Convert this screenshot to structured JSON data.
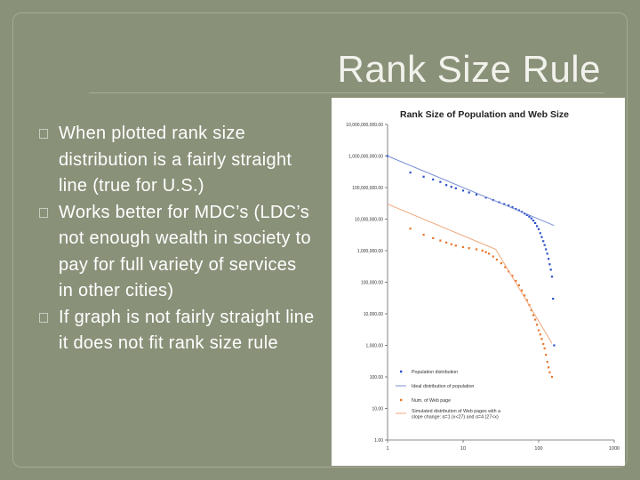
{
  "slide": {
    "title": "Rank Size Rule",
    "bullets": [
      "When plotted rank size distribution is a fairly straight line (true for U.S.)",
      "Works better for MDC’s (LDC’s not enough wealth in society to pay for full variety of services in other cities)",
      "If graph is not fairly straight line it does not fit rank size rule"
    ]
  },
  "chart_data": {
    "type": "scatter",
    "title": "Rank Size of Population and Web Size",
    "xlabel": "",
    "ylabel": "",
    "x_scale": "log",
    "y_scale": "log",
    "xlim": [
      1,
      1000
    ],
    "ylim": [
      1,
      10000000000
    ],
    "x_ticks": [
      {
        "value": 1,
        "label": "1"
      },
      {
        "value": 10,
        "label": "10"
      },
      {
        "value": 100,
        "label": "100"
      },
      {
        "value": 1000,
        "label": "1000"
      }
    ],
    "y_ticks": [
      {
        "value": 1,
        "label": "1.00"
      },
      {
        "value": 10,
        "label": "10.00"
      },
      {
        "value": 100,
        "label": "100.00"
      },
      {
        "value": 1000,
        "label": "1,000.00"
      },
      {
        "value": 10000,
        "label": "10,000.00"
      },
      {
        "value": 100000,
        "label": "100,000.00"
      },
      {
        "value": 1000000,
        "label": "1,000,000.00"
      },
      {
        "value": 10000000,
        "label": "10,000,000.00"
      },
      {
        "value": 100000000,
        "label": "100,000,000.00"
      },
      {
        "value": 1000000000,
        "label": "1,000,000,000.00"
      },
      {
        "value": 10000000000,
        "label": "10,000,000,000.00"
      }
    ],
    "grid": false,
    "legend_position": "bottom-left",
    "series": [
      {
        "name": "Population distribution",
        "kind": "points",
        "color": "#2a4fc8",
        "points": [
          [
            1,
            1000000000
          ],
          [
            2,
            300000000
          ],
          [
            3,
            220000000
          ],
          [
            4,
            180000000
          ],
          [
            5,
            150000000
          ],
          [
            6,
            120000000
          ],
          [
            7,
            105000000
          ],
          [
            8,
            95000000
          ],
          [
            10,
            80000000
          ],
          [
            12,
            70000000
          ],
          [
            15,
            60000000
          ],
          [
            20,
            48000000
          ],
          [
            25,
            40000000
          ],
          [
            30,
            34000000
          ],
          [
            35,
            30000000
          ],
          [
            40,
            27000000
          ],
          [
            45,
            24000000
          ],
          [
            50,
            21000000
          ],
          [
            55,
            19000000
          ],
          [
            60,
            17000000
          ],
          [
            65,
            15000000
          ],
          [
            70,
            13500000
          ],
          [
            75,
            12000000
          ],
          [
            80,
            10500000
          ],
          [
            85,
            9000000
          ],
          [
            90,
            7500000
          ],
          [
            95,
            6000000
          ],
          [
            100,
            4800000
          ],
          [
            105,
            3600000
          ],
          [
            110,
            2700000
          ],
          [
            115,
            2000000
          ],
          [
            120,
            1500000
          ],
          [
            125,
            1100000
          ],
          [
            130,
            800000
          ],
          [
            135,
            550000
          ],
          [
            140,
            370000
          ],
          [
            145,
            250000
          ],
          [
            150,
            150000
          ],
          [
            155,
            30000
          ],
          [
            160,
            1000
          ]
        ]
      },
      {
        "name": "Ideal distribution of population",
        "kind": "line",
        "color": "#7b8fd6",
        "points": [
          [
            1,
            1000000000
          ],
          [
            160,
            6250000
          ]
        ]
      },
      {
        "name": "Num. of Web page",
        "kind": "points",
        "color": "#e8742a",
        "points": [
          [
            2,
            5000000
          ],
          [
            3,
            3200000
          ],
          [
            4,
            2500000
          ],
          [
            5,
            2100000
          ],
          [
            6,
            1800000
          ],
          [
            7,
            1600000
          ],
          [
            8,
            1450000
          ],
          [
            10,
            1300000
          ],
          [
            12,
            1200000
          ],
          [
            15,
            1100000
          ],
          [
            18,
            1000000
          ],
          [
            20,
            900000
          ],
          [
            22,
            800000
          ],
          [
            25,
            650000
          ],
          [
            28,
            520000
          ],
          [
            32,
            400000
          ],
          [
            36,
            300000
          ],
          [
            40,
            220000
          ],
          [
            45,
            160000
          ],
          [
            50,
            110000
          ],
          [
            55,
            80000
          ],
          [
            60,
            55000
          ],
          [
            65,
            38000
          ],
          [
            70,
            27000
          ],
          [
            75,
            19000
          ],
          [
            80,
            13000
          ],
          [
            85,
            9000
          ],
          [
            90,
            6500
          ],
          [
            95,
            4500
          ],
          [
            100,
            3000
          ],
          [
            105,
            2200
          ],
          [
            110,
            1600
          ],
          [
            115,
            1100
          ],
          [
            120,
            800
          ],
          [
            125,
            500
          ],
          [
            130,
            300
          ],
          [
            135,
            200
          ],
          [
            140,
            140
          ],
          [
            150,
            100
          ]
        ]
      },
      {
        "name": "Simulated distribution of Web pages with a slope change: α=1 (x<27) and α=4 (27<x)",
        "kind": "line",
        "color": "#f0a77b",
        "points": [
          [
            1,
            30000000
          ],
          [
            27,
            1100000
          ],
          [
            150,
            1150
          ]
        ]
      }
    ]
  }
}
